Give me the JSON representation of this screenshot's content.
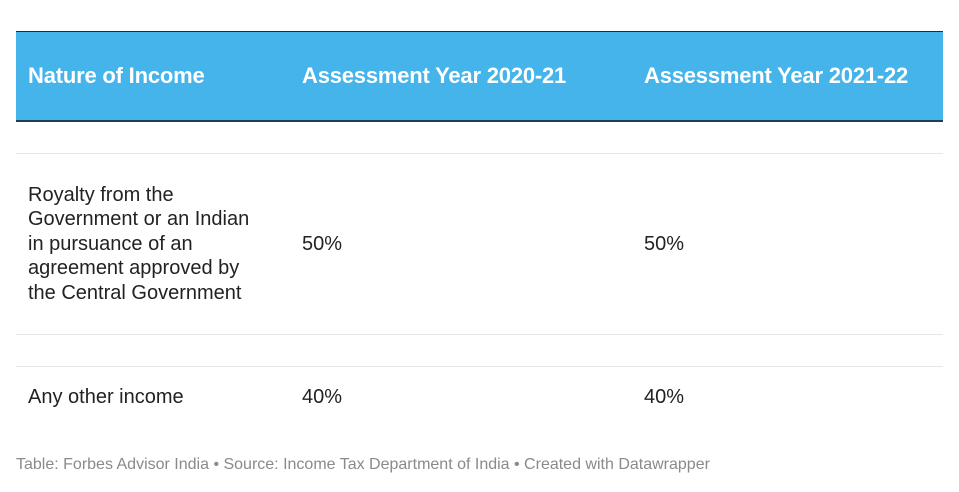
{
  "chart_data": {
    "type": "table",
    "columns": [
      "Nature of Income",
      "Assessment Year 2020-21",
      "Assessment Year 2021-22"
    ],
    "rows": [
      [
        "Royalty from the Government or an Indian in pursuance of an agreement approved by the Central Government",
        "50%",
        "50%"
      ],
      [
        "Any other income",
        "40%",
        "40%"
      ]
    ],
    "header_color": "#44b4ea"
  },
  "footer": {
    "text": "Table: Forbes Advisor India • Source: Income Tax Department of India • Created with Datawrapper"
  }
}
